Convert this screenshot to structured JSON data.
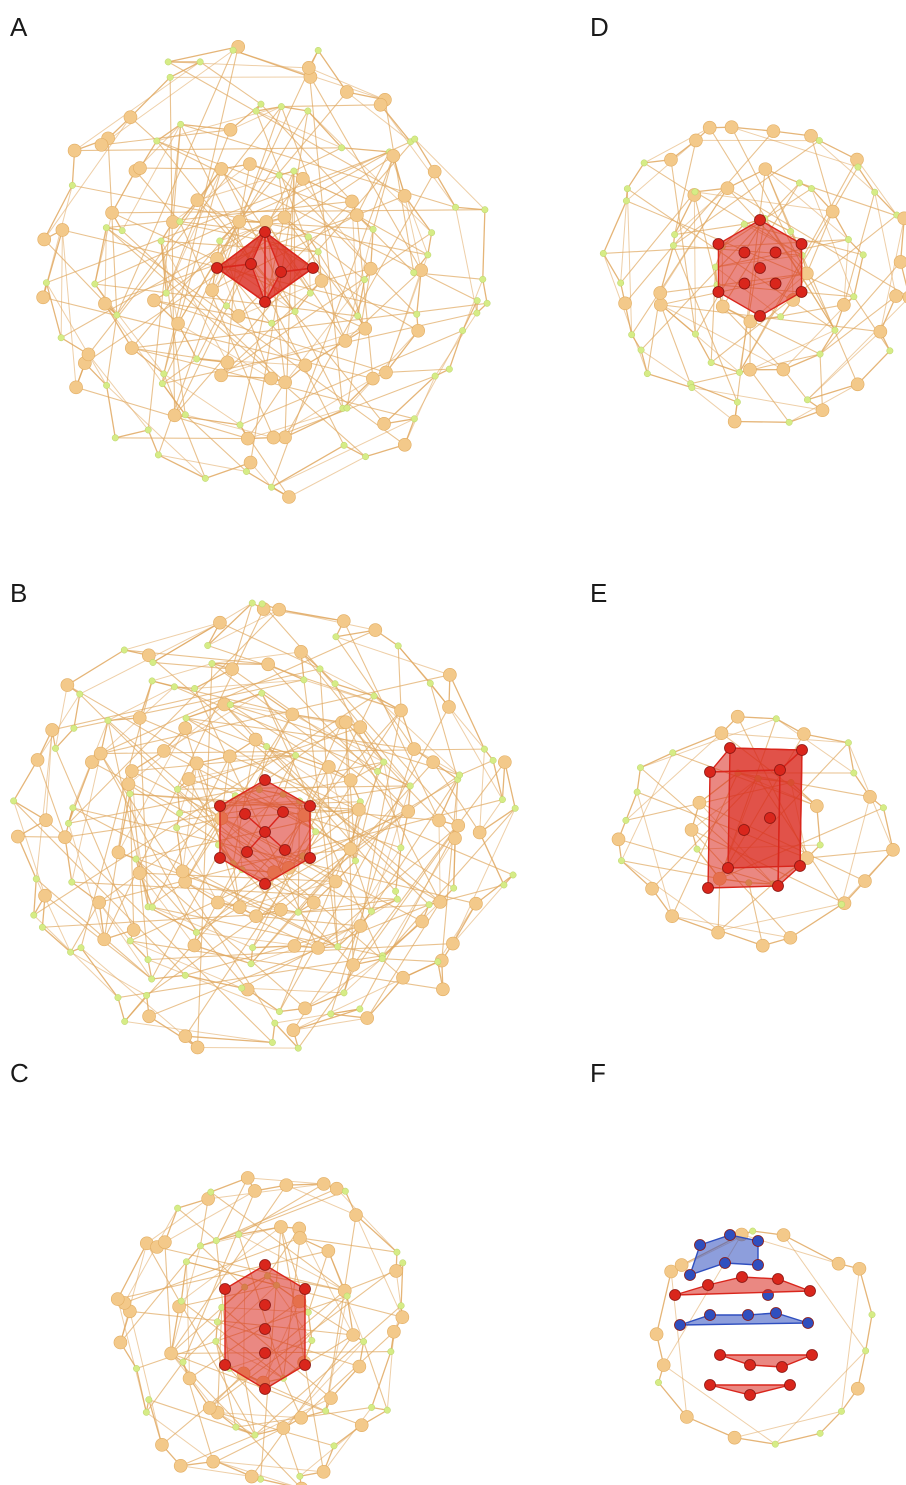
{
  "figure": {
    "panels": [
      {
        "id": "A",
        "label": "A",
        "core_shape": "octahedron",
        "shells": 4,
        "core_color": "#d9261c"
      },
      {
        "id": "B",
        "label": "B",
        "core_shape": "cuboctahedron-like",
        "shells": 5,
        "core_color": "#d9261c"
      },
      {
        "id": "C",
        "label": "C",
        "core_shape": "hexagonal-prism-like",
        "shells": 3,
        "core_color": "#d9261c"
      },
      {
        "id": "D",
        "label": "D",
        "core_shape": "icosahedron",
        "shells": 3,
        "core_color": "#d9261c"
      },
      {
        "id": "E",
        "label": "E",
        "core_shape": "double-cube",
        "shells": 2,
        "core_color": "#d9261c"
      },
      {
        "id": "F",
        "label": "F",
        "core_shape": "bicapped-antiprism",
        "shells": 1,
        "core_color": "#d9261c",
        "second_color": "#2f4fbf"
      }
    ],
    "colors": {
      "shell_atom": "#f3c98a",
      "linker_atom": "#d6ec86",
      "bond": "#e0a860",
      "core": "#d9261c",
      "core_face": "#c62318",
      "blue": "#2f4fbf"
    }
  }
}
